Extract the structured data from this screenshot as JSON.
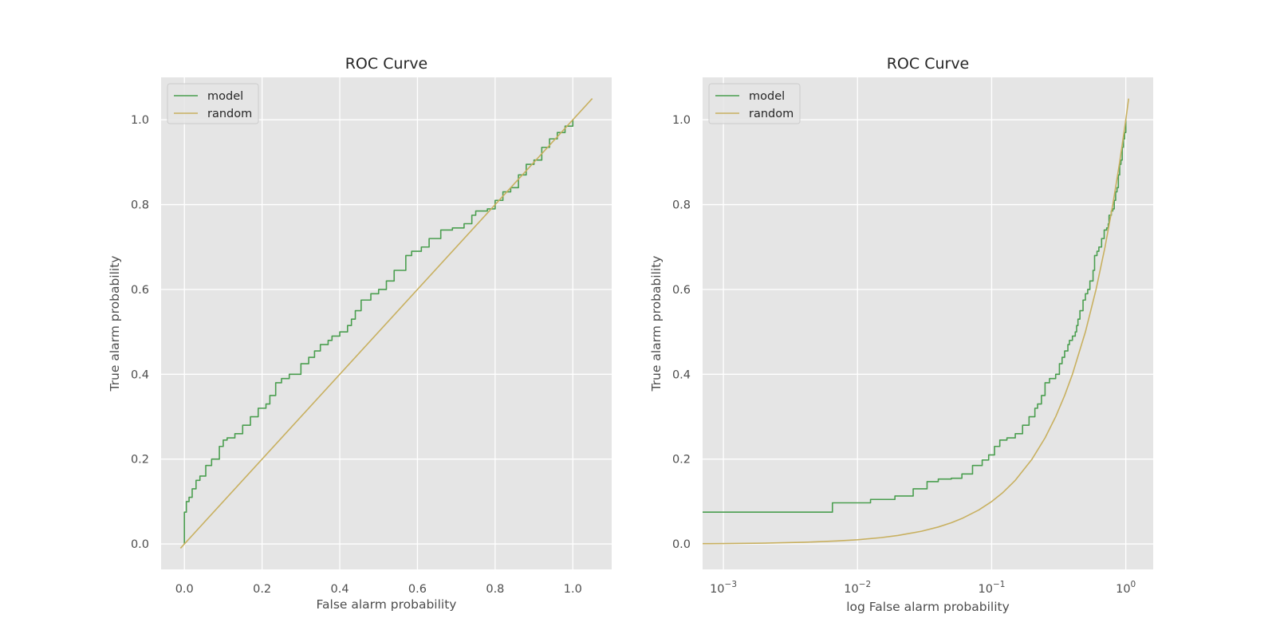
{
  "chart_data": [
    {
      "type": "line",
      "title": "ROC Curve",
      "xlabel": "False alarm probability",
      "ylabel": "True alarm probability",
      "xscale": "linear",
      "xlim": [
        -0.06,
        1.1
      ],
      "ylim": [
        -0.06,
        1.1
      ],
      "xticks": [
        0.0,
        0.2,
        0.4,
        0.6,
        0.8,
        1.0
      ],
      "xtick_labels": [
        "0.0",
        "0.2",
        "0.4",
        "0.6",
        "0.8",
        "1.0"
      ],
      "yticks": [
        0.0,
        0.2,
        0.4,
        0.6,
        0.8,
        1.0
      ],
      "ytick_labels": [
        "0.0",
        "0.2",
        "0.4",
        "0.6",
        "0.8",
        "1.0"
      ],
      "grid": true,
      "legend": "top-left",
      "series": [
        {
          "name": "model",
          "color": "#4a9e4f",
          "step": true,
          "x": [
            0.0,
            0.0,
            0.005,
            0.012,
            0.02,
            0.03,
            0.04,
            0.055,
            0.07,
            0.09,
            0.1,
            0.11,
            0.13,
            0.15,
            0.17,
            0.19,
            0.21,
            0.22,
            0.235,
            0.25,
            0.27,
            0.3,
            0.32,
            0.335,
            0.35,
            0.37,
            0.38,
            0.4,
            0.42,
            0.43,
            0.44,
            0.455,
            0.48,
            0.5,
            0.52,
            0.54,
            0.57,
            0.585,
            0.61,
            0.63,
            0.66,
            0.69,
            0.72,
            0.74,
            0.75,
            0.78,
            0.8,
            0.82,
            0.84,
            0.86,
            0.88,
            0.9,
            0.92,
            0.94,
            0.96,
            0.98,
            1.0
          ],
          "y": [
            0.0,
            0.075,
            0.1,
            0.11,
            0.13,
            0.15,
            0.16,
            0.185,
            0.2,
            0.23,
            0.245,
            0.25,
            0.26,
            0.28,
            0.3,
            0.32,
            0.33,
            0.35,
            0.38,
            0.39,
            0.4,
            0.425,
            0.44,
            0.455,
            0.47,
            0.48,
            0.49,
            0.5,
            0.515,
            0.53,
            0.55,
            0.575,
            0.59,
            0.6,
            0.62,
            0.645,
            0.68,
            0.69,
            0.7,
            0.72,
            0.74,
            0.745,
            0.755,
            0.775,
            0.785,
            0.79,
            0.81,
            0.83,
            0.84,
            0.87,
            0.895,
            0.905,
            0.935,
            0.955,
            0.97,
            0.985,
            1.0
          ]
        },
        {
          "name": "random",
          "color": "#c8b060",
          "step": false,
          "x": [
            -0.01,
            1.05
          ],
          "y": [
            -0.01,
            1.05
          ]
        }
      ]
    },
    {
      "type": "line",
      "title": "ROC Curve",
      "xlabel": "log False alarm probability",
      "ylabel": "True alarm probability",
      "xscale": "log",
      "xlim": [
        0.0007,
        1.6
      ],
      "ylim": [
        -0.06,
        1.1
      ],
      "xticks": [
        0.001,
        0.01,
        0.1,
        1
      ],
      "xtick_labels": [
        {
          "base": "10",
          "exp": "−3"
        },
        {
          "base": "10",
          "exp": "−2"
        },
        {
          "base": "10",
          "exp": "−1"
        },
        {
          "base": "10",
          "exp": "0"
        }
      ],
      "yticks": [
        0.0,
        0.2,
        0.4,
        0.6,
        0.8,
        1.0
      ],
      "ytick_labels": [
        "0.0",
        "0.2",
        "0.4",
        "0.6",
        "0.8",
        "1.0"
      ],
      "grid": true,
      "legend": "top-left",
      "series": [
        {
          "name": "model",
          "color": "#4a9e4f",
          "step": true,
          "x": [
            0.0007,
            0.0065,
            0.0125,
            0.019,
            0.026,
            0.033,
            0.04,
            0.05,
            0.06,
            0.072,
            0.085,
            0.095,
            0.105,
            0.115,
            0.13,
            0.15,
            0.17,
            0.19,
            0.21,
            0.22,
            0.235,
            0.25,
            0.27,
            0.3,
            0.32,
            0.335,
            0.35,
            0.37,
            0.38,
            0.4,
            0.42,
            0.43,
            0.44,
            0.455,
            0.48,
            0.5,
            0.52,
            0.54,
            0.57,
            0.585,
            0.61,
            0.63,
            0.66,
            0.69,
            0.72,
            0.74,
            0.75,
            0.78,
            0.8,
            0.82,
            0.84,
            0.86,
            0.88,
            0.9,
            0.92,
            0.94,
            0.96,
            0.98,
            1.0
          ],
          "y": [
            0.075,
            0.097,
            0.105,
            0.113,
            0.13,
            0.147,
            0.153,
            0.155,
            0.165,
            0.185,
            0.198,
            0.21,
            0.23,
            0.245,
            0.25,
            0.26,
            0.28,
            0.3,
            0.32,
            0.33,
            0.35,
            0.38,
            0.39,
            0.4,
            0.425,
            0.44,
            0.455,
            0.47,
            0.48,
            0.49,
            0.5,
            0.515,
            0.53,
            0.55,
            0.575,
            0.59,
            0.6,
            0.62,
            0.645,
            0.68,
            0.69,
            0.7,
            0.72,
            0.74,
            0.745,
            0.755,
            0.775,
            0.785,
            0.79,
            0.81,
            0.83,
            0.84,
            0.87,
            0.895,
            0.905,
            0.935,
            0.955,
            0.97,
            1.0
          ]
        },
        {
          "name": "random",
          "color": "#c8b060",
          "step": false,
          "x": [
            0.0007,
            0.001,
            0.002,
            0.004,
            0.007,
            0.01,
            0.015,
            0.02,
            0.03,
            0.04,
            0.05,
            0.06,
            0.08,
            0.1,
            0.12,
            0.15,
            0.2,
            0.25,
            0.3,
            0.35,
            0.4,
            0.5,
            0.6,
            0.7,
            0.8,
            0.9,
            1.0,
            1.05
          ],
          "y": [
            0.0007,
            0.001,
            0.002,
            0.004,
            0.007,
            0.01,
            0.015,
            0.02,
            0.03,
            0.04,
            0.05,
            0.06,
            0.08,
            0.1,
            0.12,
            0.15,
            0.2,
            0.25,
            0.3,
            0.35,
            0.4,
            0.5,
            0.6,
            0.7,
            0.8,
            0.9,
            1.0,
            1.05
          ]
        }
      ]
    }
  ]
}
